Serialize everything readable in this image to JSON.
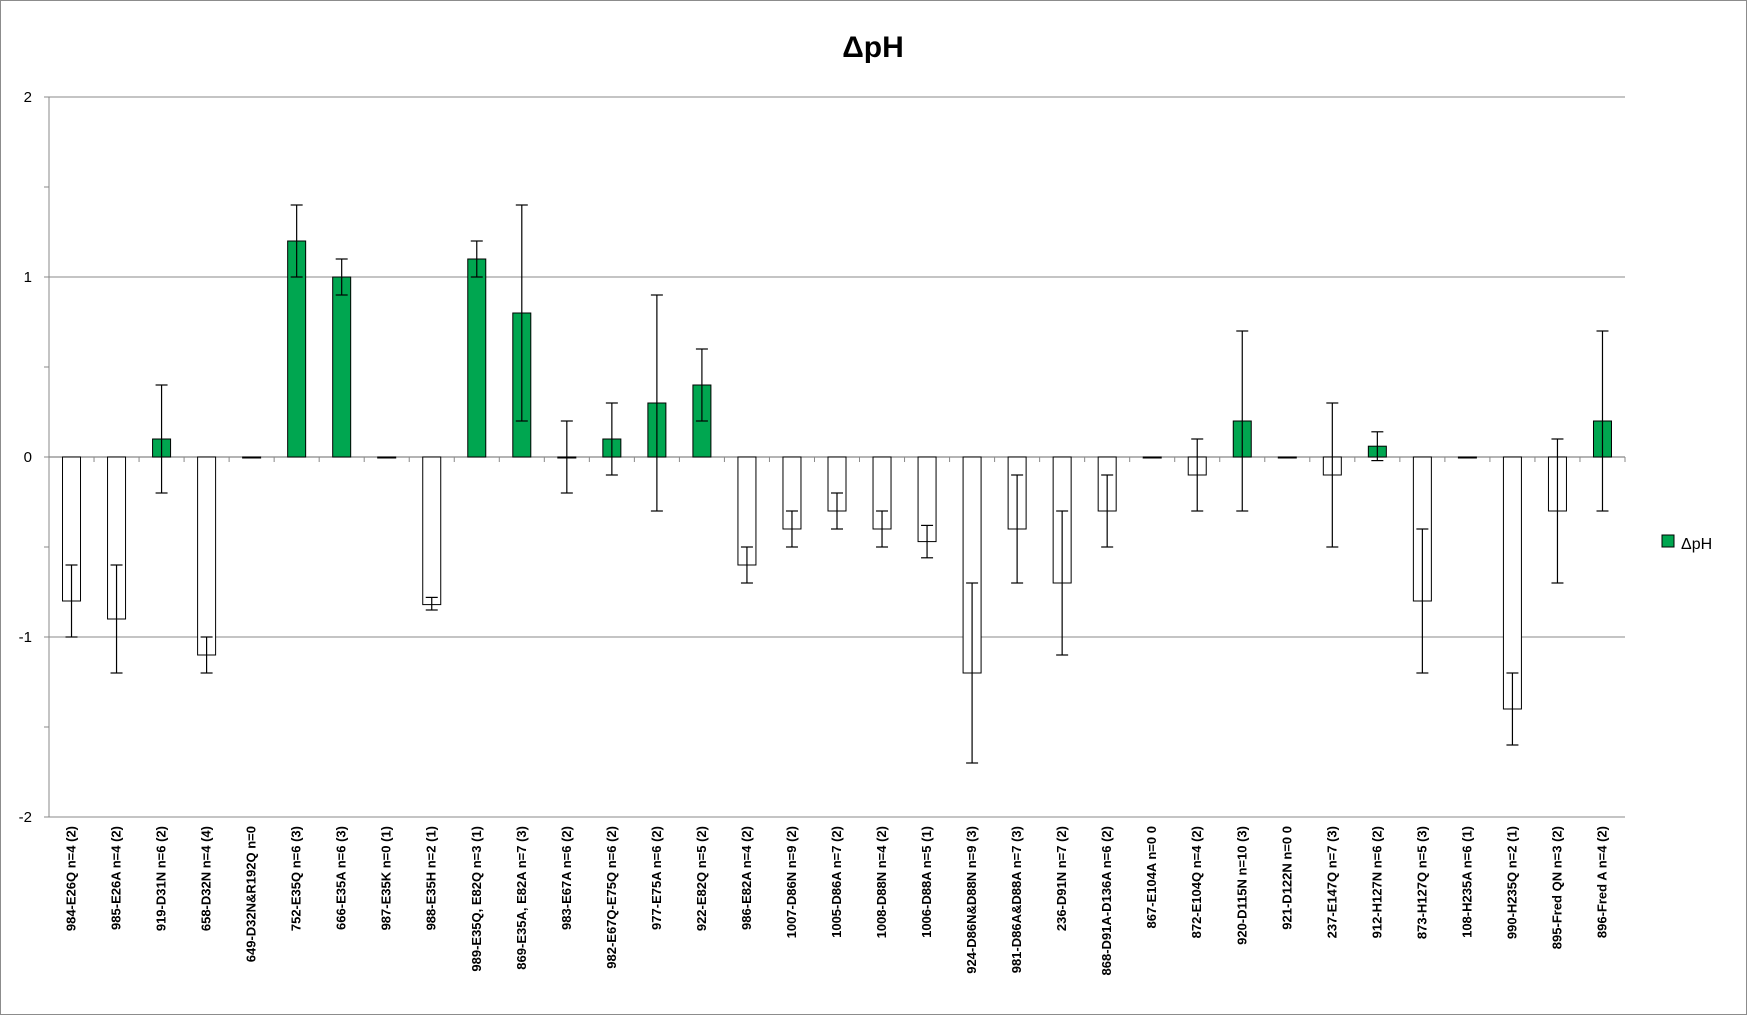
{
  "chart_data": {
    "type": "bar",
    "title": "ΔpH",
    "xlabel": "",
    "ylabel": "",
    "ylim": [
      -2,
      2
    ],
    "yticks": [
      "2",
      "1",
      "0",
      "-1",
      "-2"
    ],
    "grid": true,
    "legend_position": "right",
    "legend_label": "ΔpH",
    "colors": {
      "positive": "#00a650",
      "negative": "#ffffff",
      "outline": "#000000"
    },
    "categories": [
      "984-E26Q n=4 (2)",
      "985-E26A n=4 (2)",
      "919-D31N n=6 (2)",
      "658-D32N n=4 (4)",
      "649-D32N&R192Q n=0",
      "752-E35Q n=6 (3)",
      "666-E35A n=6 (3)",
      "987-E35K n=0 (1)",
      "988-E35H n=2 (1)",
      "989-E35Q, E82Q n=3 (1)",
      "869-E35A, E82A n=7 (3)",
      "983-E67A n=6 (2)",
      "982-E67Q-E75Q n=6 (2)",
      "977-E75A n=6 (2)",
      "922-E82Q n=5 (2)",
      "986-E82A n=4 (2)",
      "1007-D86N n=9 (2)",
      "1005-D86A n=7 (2)",
      "1008-D88N n=4 (2)",
      "1006-D88A n=5 (1)",
      "924-D86N&D88N n=9 (3)",
      "981-D86A&D88A n=7 (3)",
      "236-D91N n=7 (2)",
      "868-D91A-D136A n=6 (2)",
      "867-E104A n=0 0",
      "872-E104Q n=4 (2)",
      "920-D115N n=10 (3)",
      "921-D122N n=0 0",
      "237-E147Q n=7 (3)",
      "912-H127N n=6 (2)",
      "873-H127Q n=5 (3)",
      "108-H235A n=6 (1)",
      "990-H235Q n=2 (1)",
      "895-Fred QN n=3 (2)",
      "896-Fred A n=4 (2)"
    ],
    "series": [
      {
        "name": "ΔpH",
        "values": [
          -0.8,
          -0.9,
          0.1,
          -1.1,
          0,
          1.2,
          1.0,
          0,
          -0.82,
          1.1,
          0.8,
          0,
          0.1,
          0.3,
          0.4,
          -0.6,
          -0.4,
          -0.3,
          -0.4,
          -0.47,
          -1.2,
          -0.4,
          -0.7,
          -0.3,
          0,
          -0.1,
          0.2,
          0,
          -0.1,
          0.06,
          -0.8,
          0,
          -1.4,
          -0.3,
          0.2
        ],
        "error_low": [
          -1.0,
          -1.2,
          -0.2,
          -1.2,
          null,
          1.0,
          0.9,
          null,
          -0.85,
          1.0,
          0.2,
          -0.2,
          -0.1,
          -0.3,
          0.2,
          -0.7,
          -0.5,
          -0.4,
          -0.5,
          -0.56,
          -1.7,
          -0.7,
          -1.1,
          -0.5,
          null,
          -0.3,
          -0.3,
          null,
          -0.5,
          -0.02,
          -1.2,
          null,
          -1.6,
          -0.7,
          -0.3
        ],
        "error_high": [
          -0.6,
          -0.6,
          0.4,
          -1.0,
          null,
          1.4,
          1.1,
          null,
          -0.78,
          1.2,
          1.4,
          0.2,
          0.3,
          0.9,
          0.6,
          -0.5,
          -0.3,
          -0.2,
          -0.3,
          -0.38,
          -0.7,
          -0.1,
          -0.3,
          -0.1,
          null,
          0.1,
          0.7,
          null,
          0.3,
          0.14,
          -0.4,
          null,
          -1.2,
          0.1,
          0.7
        ]
      }
    ]
  }
}
